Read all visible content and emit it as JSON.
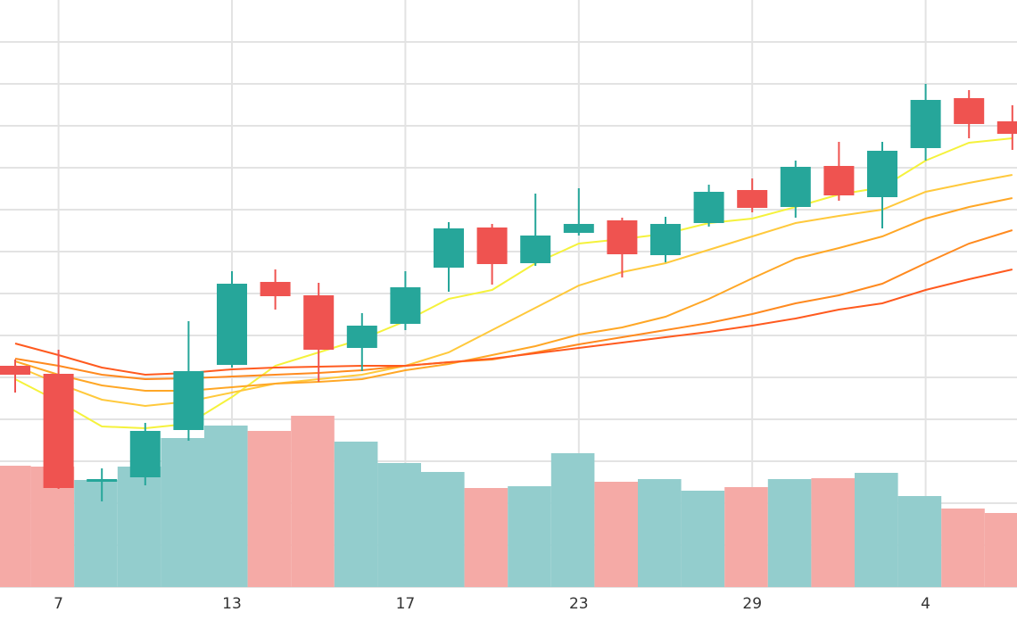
{
  "chart_data": {
    "type": "candlestick",
    "categories": [
      null,
      "7",
      null,
      null,
      null,
      "13",
      null,
      null,
      null,
      "17",
      null,
      null,
      null,
      "23",
      null,
      null,
      null,
      "29",
      null,
      null,
      null,
      "4",
      null,
      null
    ],
    "open": [
      248,
      239,
      118,
      123,
      176,
      249,
      342,
      327,
      268,
      295,
      358,
      403,
      363,
      397,
      411,
      372,
      408,
      445,
      426,
      472,
      437,
      492,
      548,
      522
    ],
    "close": [
      238,
      111,
      121,
      175,
      242,
      340,
      326,
      266,
      293,
      336,
      402,
      362,
      394,
      407,
      373,
      407,
      443,
      425,
      471,
      439,
      489,
      546,
      519,
      508
    ],
    "high": [
      255,
      266,
      133,
      184,
      298,
      354,
      356,
      341,
      307,
      354,
      409,
      407,
      441,
      447,
      414,
      415,
      451,
      458,
      478,
      499,
      499,
      564,
      557,
      540
    ],
    "low": [
      218,
      110,
      96,
      114,
      164,
      246,
      311,
      230,
      242,
      288,
      331,
      339,
      360,
      394,
      347,
      364,
      404,
      420,
      414,
      433,
      402,
      478,
      503,
      490
    ],
    "up_color": "#26a69a",
    "down_color": "#ef5350",
    "volume": {
      "axis": "y2",
      "up_color": "#93cdcd",
      "down_color": "#f5aaa6",
      "values": [
        136,
        135,
        120,
        135,
        167,
        181,
        175,
        192,
        163,
        139,
        129,
        111,
        113,
        150,
        118,
        121,
        108,
        112,
        121,
        122,
        128,
        102,
        88,
        83
      ]
    },
    "moving_averages": [
      {
        "color": "#f5f23c",
        "values": [
          233,
          208,
          180,
          178,
          183,
          213,
          248,
          263,
          278,
          298,
          323,
          333,
          363,
          385,
          390,
          396,
          408,
          413,
          426,
          440,
          448,
          478,
          498,
          503
        ]
      },
      {
        "color": "#ffc93c",
        "values": [
          248,
          228,
          210,
          203,
          208,
          218,
          228,
          233,
          238,
          248,
          263,
          288,
          313,
          338,
          353,
          363,
          378,
          393,
          408,
          416,
          423,
          443,
          453,
          462
        ]
      },
      {
        "color": "#ffa726",
        "values": [
          253,
          238,
          226,
          220,
          220,
          224,
          228,
          230,
          233,
          243,
          250,
          260,
          270,
          283,
          291,
          303,
          323,
          346,
          368,
          380,
          393,
          413,
          426,
          436
        ]
      },
      {
        "color": "#ff8a1f",
        "values": [
          256,
          248,
          238,
          233,
          234,
          236,
          238,
          240,
          243,
          248,
          252,
          255,
          263,
          272,
          280,
          288,
          296,
          306,
          318,
          327,
          340,
          363,
          385,
          400
        ]
      },
      {
        "color": "#ff5a1f",
        "values": [
          273,
          260,
          246,
          238,
          240,
          244,
          246,
          247,
          248,
          248,
          252,
          256,
          262,
          268,
          274,
          280,
          286,
          293,
          301,
          311,
          318,
          333,
          345,
          356
        ]
      }
    ],
    "ylim": [
      0,
      658
    ],
    "yticks": [
      0,
      47,
      94,
      141,
      188,
      235,
      282,
      329,
      376,
      423,
      470,
      517,
      564,
      611
    ],
    "y2lim": [
      0,
      658
    ],
    "grid": true
  }
}
